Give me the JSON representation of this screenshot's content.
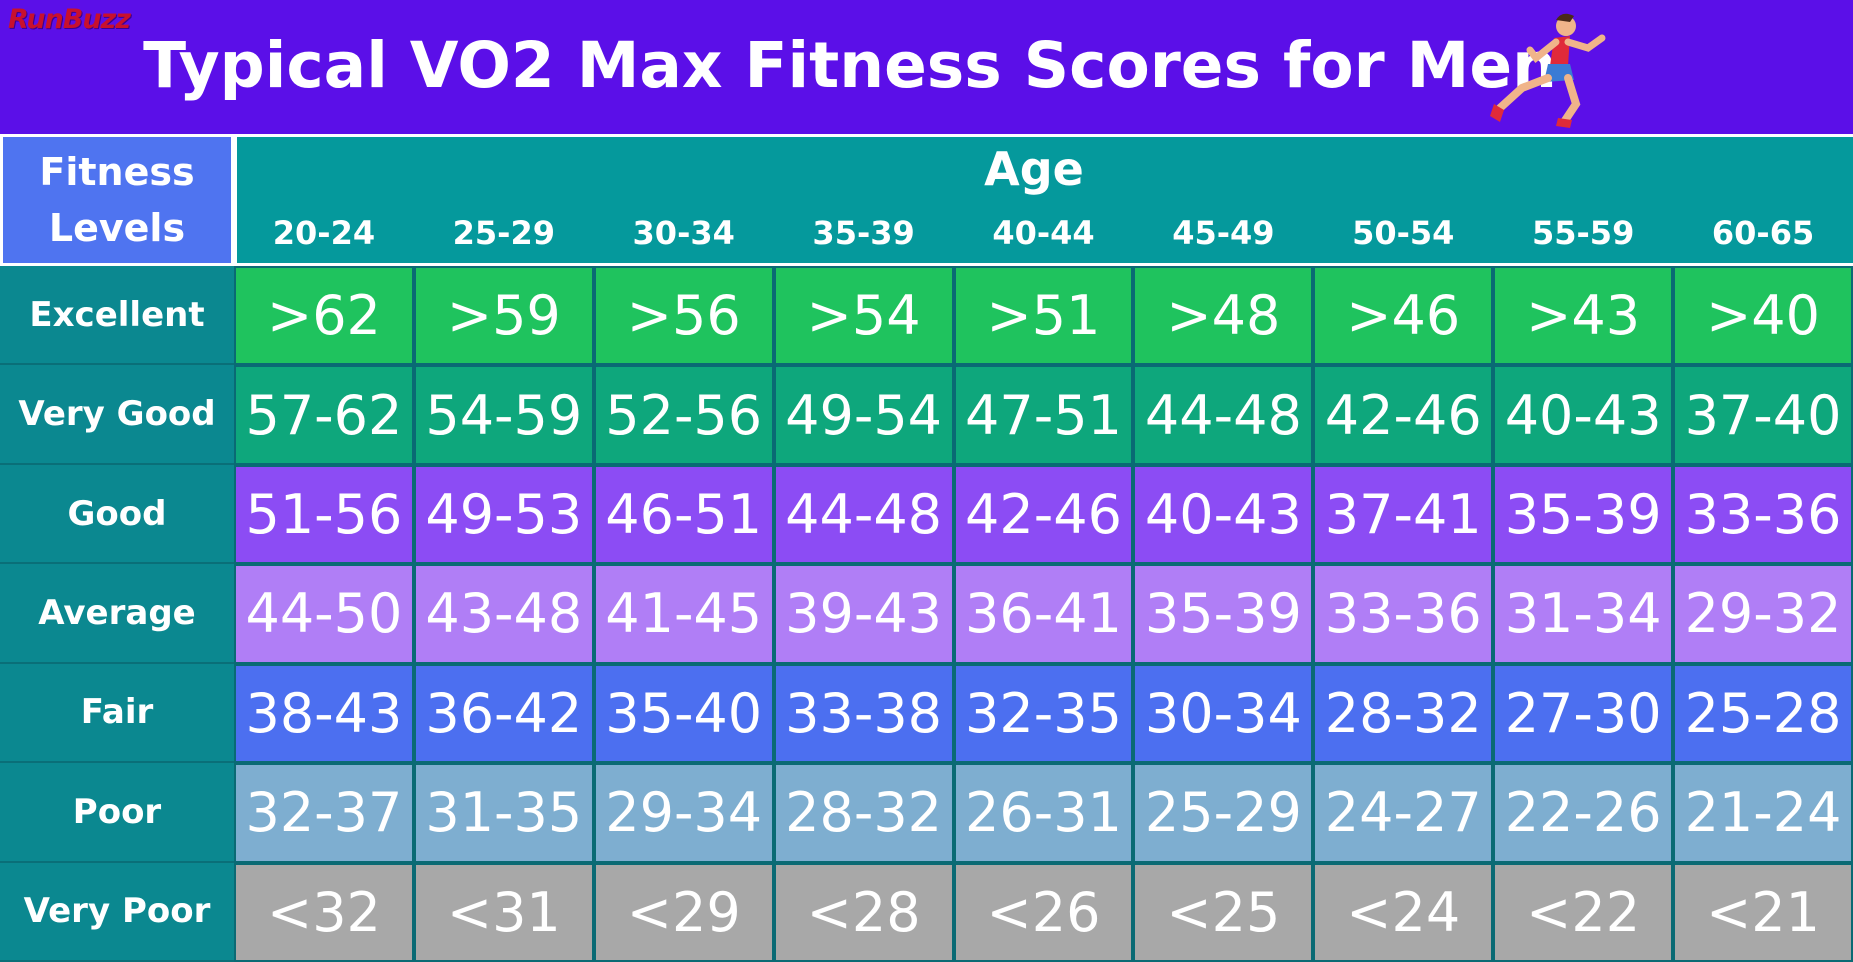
{
  "header": {
    "logo": "RunBuzz",
    "title": "Typical VO2 Max Fitness Scores for Men",
    "runner_icon": "runner-icon"
  },
  "colors": {
    "banner": "#5b0fe8",
    "fitness_header": "#4f74f0",
    "age_header": "#05999c",
    "row_label": "#0b8890",
    "Excellent": "#1fc35e",
    "Very Good": "#0ea77c",
    "Good": "#8c4cf4",
    "Average": "#b07ef6",
    "Fair": "#4c6ff0",
    "Poor": "#7eaed0",
    "Very Poor": "#a8a8a8"
  },
  "chart_data": {
    "type": "table",
    "title": "Typical VO2 Max Fitness Scores for Men",
    "row_header": "Fitness Levels",
    "column_group_header": "Age",
    "columns": [
      "20-24",
      "25-29",
      "30-34",
      "35-39",
      "40-44",
      "45-49",
      "50-54",
      "55-59",
      "60-65"
    ],
    "rows": [
      {
        "level": "Excellent",
        "values": [
          ">62",
          ">59",
          ">56",
          ">54",
          ">51",
          ">48",
          ">46",
          ">43",
          ">40"
        ]
      },
      {
        "level": "Very Good",
        "values": [
          "57-62",
          "54-59",
          "52-56",
          "49-54",
          "47-51",
          "44-48",
          "42-46",
          "40-43",
          "37-40"
        ]
      },
      {
        "level": "Good",
        "values": [
          "51-56",
          "49-53",
          "46-51",
          "44-48",
          "42-46",
          "40-43",
          "37-41",
          "35-39",
          "33-36"
        ]
      },
      {
        "level": "Average",
        "values": [
          "44-50",
          "43-48",
          "41-45",
          "39-43",
          "36-41",
          "35-39",
          "33-36",
          "31-34",
          "29-32"
        ]
      },
      {
        "level": "Fair",
        "values": [
          "38-43",
          "36-42",
          "35-40",
          "33-38",
          "32-35",
          "30-34",
          "28-32",
          "27-30",
          "25-28"
        ]
      },
      {
        "level": "Poor",
        "values": [
          "32-37",
          "31-35",
          "29-34",
          "28-32",
          "26-31",
          "25-29",
          "24-27",
          "22-26",
          "21-24"
        ]
      },
      {
        "level": "Very Poor",
        "values": [
          "<32",
          "<31",
          "<29",
          "<28",
          "<26",
          "<25",
          "<24",
          "<22",
          "<21"
        ]
      }
    ]
  }
}
